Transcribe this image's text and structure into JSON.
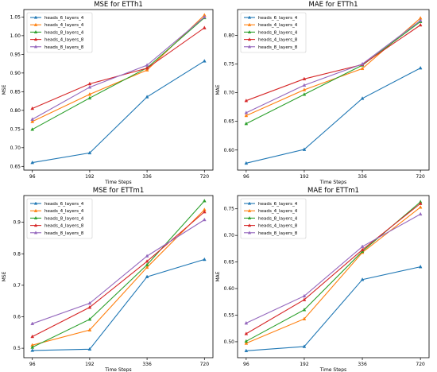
{
  "figure": {
    "palette": [
      "#1f77b4",
      "#ff7f0e",
      "#2ca02c",
      "#d62728",
      "#9467bd"
    ],
    "marker": "triangle-up"
  },
  "chart_data": [
    {
      "type": "line",
      "title": "MSE for ETTh1",
      "xlabel": "Time Steps",
      "ylabel": "MSE",
      "categories": [
        "96",
        "192",
        "336",
        "720"
      ],
      "ylim": [
        0.64,
        1.07
      ],
      "yticks": [
        "0.65",
        "0.70",
        "0.75",
        "0.80",
        "0.85",
        "0.90",
        "0.95",
        "1.00",
        "1.05"
      ],
      "ytick_values": [
        0.65,
        0.7,
        0.75,
        0.8,
        0.85,
        0.9,
        0.95,
        1.0,
        1.05
      ],
      "legend_position": "top-left",
      "grid": false,
      "series": [
        {
          "name": "heads_6_layers_4",
          "values": [
            0.66,
            0.686,
            0.836,
            0.932
          ]
        },
        {
          "name": "heads_4_layers_4",
          "values": [
            0.77,
            0.843,
            0.908,
            1.055
          ]
        },
        {
          "name": "heads_8_layers_4",
          "values": [
            0.749,
            0.833,
            0.914,
            1.048
          ]
        },
        {
          "name": "heads_4_layers_8",
          "values": [
            0.805,
            0.871,
            0.913,
            1.021
          ]
        },
        {
          "name": "heads_8_layers_8",
          "values": [
            0.776,
            0.862,
            0.921,
            1.05
          ]
        }
      ]
    },
    {
      "type": "line",
      "title": "MAE for ETTh1",
      "xlabel": "Time Steps",
      "ylabel": "MAE",
      "categories": [
        "96",
        "192",
        "336",
        "720"
      ],
      "ylim": [
        0.565,
        0.845
      ],
      "yticks": [
        "0.60",
        "0.65",
        "0.70",
        "0.75",
        "0.80"
      ],
      "ytick_values": [
        0.6,
        0.65,
        0.7,
        0.75,
        0.8
      ],
      "legend_position": "top-left",
      "grid": false,
      "series": [
        {
          "name": "heads_6_layers_4",
          "values": [
            0.577,
            0.601,
            0.69,
            0.743
          ]
        },
        {
          "name": "heads_4_layers_4",
          "values": [
            0.66,
            0.705,
            0.742,
            0.83
          ]
        },
        {
          "name": "heads_8_layers_4",
          "values": [
            0.646,
            0.697,
            0.748,
            0.824
          ]
        },
        {
          "name": "heads_4_layers_8",
          "values": [
            0.686,
            0.724,
            0.749,
            0.818
          ]
        },
        {
          "name": "heads_8_layers_8",
          "values": [
            0.665,
            0.713,
            0.75,
            0.826
          ]
        }
      ]
    },
    {
      "type": "line",
      "title": "MSE for ETTm1",
      "xlabel": "Time Steps",
      "ylabel": "MSE",
      "categories": [
        "96",
        "192",
        "336",
        "720"
      ],
      "ylim": [
        0.47,
        0.985
      ],
      "yticks": [
        "0.5",
        "0.6",
        "0.7",
        "0.8",
        "0.9"
      ],
      "ytick_values": [
        0.5,
        0.6,
        0.7,
        0.8,
        0.9
      ],
      "legend_position": "top-left",
      "grid": false,
      "series": [
        {
          "name": "heads_6_layers_4",
          "values": [
            0.493,
            0.497,
            0.727,
            0.782
          ]
        },
        {
          "name": "heads_4_layers_4",
          "values": [
            0.51,
            0.558,
            0.757,
            0.94
          ]
        },
        {
          "name": "heads_8_layers_4",
          "values": [
            0.503,
            0.592,
            0.765,
            0.968
          ]
        },
        {
          "name": "heads_4_layers_8",
          "values": [
            0.537,
            0.63,
            0.776,
            0.933
          ]
        },
        {
          "name": "heads_8_layers_8",
          "values": [
            0.578,
            0.643,
            0.793,
            0.908
          ]
        }
      ]
    },
    {
      "type": "line",
      "title": "MAE for ETTm1",
      "xlabel": "Time Steps",
      "ylabel": "MAE",
      "categories": [
        "96",
        "192",
        "336",
        "720"
      ],
      "ylim": [
        0.47,
        0.775
      ],
      "yticks": [
        "0.50",
        "0.55",
        "0.60",
        "0.65",
        "0.70",
        "0.75"
      ],
      "ytick_values": [
        0.5,
        0.55,
        0.6,
        0.65,
        0.7,
        0.75
      ],
      "legend_position": "top-left",
      "grid": false,
      "series": [
        {
          "name": "heads_6_layers_4",
          "values": [
            0.483,
            0.491,
            0.617,
            0.641
          ]
        },
        {
          "name": "heads_4_layers_4",
          "values": [
            0.497,
            0.543,
            0.668,
            0.753
          ]
        },
        {
          "name": "heads_8_layers_4",
          "values": [
            0.501,
            0.56,
            0.67,
            0.763
          ]
        },
        {
          "name": "heads_4_layers_8",
          "values": [
            0.515,
            0.579,
            0.673,
            0.76
          ]
        },
        {
          "name": "heads_8_layers_8",
          "values": [
            0.535,
            0.586,
            0.679,
            0.74
          ]
        }
      ]
    }
  ]
}
